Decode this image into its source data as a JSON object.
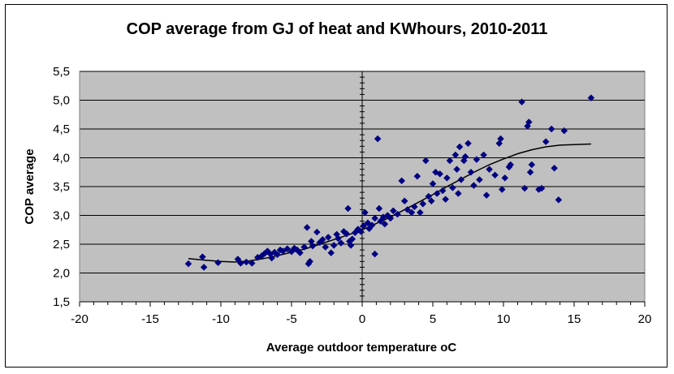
{
  "chart_data": {
    "type": "scatter",
    "title": "COP average from GJ of heat and KWhours, 2010-2011",
    "xlabel": "Average outdoor temperature oC",
    "ylabel": "COP average",
    "xlim": [
      -20,
      20
    ],
    "ylim": [
      1.5,
      5.5
    ],
    "xticks": [
      "-20",
      "-15",
      "-10",
      "-5",
      "0",
      "5",
      "10",
      "15",
      "20"
    ],
    "yticks": [
      "1,5",
      "2,0",
      "2,5",
      "3,0",
      "3,5",
      "4,0",
      "4,5",
      "5,0",
      "5,5"
    ],
    "xtick_values": [
      -20,
      -15,
      -10,
      -5,
      0,
      5,
      10,
      15,
      20
    ],
    "ytick_values": [
      1.5,
      2.0,
      2.5,
      3.0,
      3.5,
      4.0,
      4.5,
      5.0,
      5.5
    ],
    "plot_background": "#c0c0c0",
    "marker_color": "#000080",
    "trend_color": "#000000",
    "grid": "horizontal",
    "legend": "none",
    "series": [
      {
        "marker": "diamond",
        "points": [
          [
            -12.3,
            2.16
          ],
          [
            -11.3,
            2.28
          ],
          [
            -11.2,
            2.1
          ],
          [
            -10.2,
            2.18
          ],
          [
            -8.8,
            2.24
          ],
          [
            -8.6,
            2.17
          ],
          [
            -8.2,
            2.19
          ],
          [
            -7.8,
            2.17
          ],
          [
            -7.4,
            2.27
          ],
          [
            -7.1,
            2.3
          ],
          [
            -6.9,
            2.34
          ],
          [
            -6.7,
            2.38
          ],
          [
            -6.5,
            2.33
          ],
          [
            -6.4,
            2.26
          ],
          [
            -6.2,
            2.36
          ],
          [
            -6.0,
            2.32
          ],
          [
            -5.8,
            2.4
          ],
          [
            -5.6,
            2.38
          ],
          [
            -5.3,
            2.42
          ],
          [
            -5.0,
            2.37
          ],
          [
            -4.8,
            2.43
          ],
          [
            -4.6,
            2.4
          ],
          [
            -4.4,
            2.35
          ],
          [
            -4.1,
            2.45
          ],
          [
            -3.8,
            2.16
          ],
          [
            -3.7,
            2.2
          ],
          [
            -3.9,
            2.79
          ],
          [
            -3.6,
            2.55
          ],
          [
            -3.5,
            2.47
          ],
          [
            -3.2,
            2.71
          ],
          [
            -3.0,
            2.53
          ],
          [
            -2.8,
            2.58
          ],
          [
            -2.6,
            2.45
          ],
          [
            -2.4,
            2.62
          ],
          [
            -2.2,
            2.35
          ],
          [
            -2.0,
            2.48
          ],
          [
            -1.8,
            2.67
          ],
          [
            -1.7,
            2.6
          ],
          [
            -1.5,
            2.52
          ],
          [
            -1.3,
            2.72
          ],
          [
            -1.1,
            2.68
          ],
          [
            -0.9,
            2.55
          ],
          [
            -0.8,
            2.48
          ],
          [
            -0.7,
            2.59
          ],
          [
            -1.0,
            3.12
          ],
          [
            -0.5,
            2.7
          ],
          [
            -0.3,
            2.76
          ],
          [
            -0.1,
            2.72
          ],
          [
            0.1,
            2.82
          ],
          [
            0.2,
            3.05
          ],
          [
            0.4,
            2.87
          ],
          [
            0.5,
            2.77
          ],
          [
            0.7,
            2.83
          ],
          [
            0.9,
            2.95
          ],
          [
            0.9,
            2.33
          ],
          [
            1.1,
            4.33
          ],
          [
            1.2,
            3.12
          ],
          [
            1.3,
            2.9
          ],
          [
            1.5,
            2.97
          ],
          [
            1.6,
            2.85
          ],
          [
            1.8,
            3.0
          ],
          [
            2.0,
            2.95
          ],
          [
            2.2,
            3.08
          ],
          [
            2.5,
            3.02
          ],
          [
            2.8,
            3.6
          ],
          [
            3.0,
            3.25
          ],
          [
            3.2,
            3.1
          ],
          [
            3.5,
            3.05
          ],
          [
            3.7,
            3.15
          ],
          [
            3.9,
            3.68
          ],
          [
            4.1,
            3.05
          ],
          [
            4.3,
            3.2
          ],
          [
            4.5,
            3.95
          ],
          [
            4.7,
            3.33
          ],
          [
            4.9,
            3.25
          ],
          [
            5.0,
            3.55
          ],
          [
            5.2,
            3.75
          ],
          [
            5.3,
            3.38
          ],
          [
            5.5,
            3.72
          ],
          [
            5.7,
            3.43
          ],
          [
            5.9,
            3.28
          ],
          [
            6.0,
            3.65
          ],
          [
            6.2,
            3.95
          ],
          [
            6.4,
            3.48
          ],
          [
            6.6,
            4.05
          ],
          [
            6.7,
            3.8
          ],
          [
            6.8,
            3.38
          ],
          [
            6.9,
            4.19
          ],
          [
            7.0,
            3.62
          ],
          [
            7.2,
            3.95
          ],
          [
            7.3,
            4.02
          ],
          [
            7.5,
            4.25
          ],
          [
            7.7,
            3.75
          ],
          [
            7.9,
            3.52
          ],
          [
            8.1,
            3.97
          ],
          [
            8.3,
            3.62
          ],
          [
            8.6,
            4.05
          ],
          [
            8.8,
            3.35
          ],
          [
            9.0,
            3.8
          ],
          [
            9.4,
            3.7
          ],
          [
            9.7,
            4.25
          ],
          [
            9.8,
            4.33
          ],
          [
            9.9,
            3.45
          ],
          [
            10.1,
            3.65
          ],
          [
            10.4,
            3.84
          ],
          [
            10.5,
            3.88
          ],
          [
            11.3,
            4.97
          ],
          [
            11.5,
            3.47
          ],
          [
            11.7,
            4.55
          ],
          [
            11.8,
            4.62
          ],
          [
            11.9,
            3.75
          ],
          [
            12.0,
            3.88
          ],
          [
            12.5,
            3.45
          ],
          [
            12.7,
            3.47
          ],
          [
            13.0,
            4.28
          ],
          [
            13.4,
            4.5
          ],
          [
            13.6,
            3.82
          ],
          [
            13.9,
            3.27
          ],
          [
            14.3,
            4.47
          ],
          [
            16.2,
            5.04
          ]
        ]
      }
    ],
    "trendline": [
      [
        -12.3,
        2.25
      ],
      [
        -11,
        2.22
      ],
      [
        -10,
        2.2
      ],
      [
        -9,
        2.19
      ],
      [
        -8,
        2.21
      ],
      [
        -7,
        2.25
      ],
      [
        -6,
        2.3
      ],
      [
        -5,
        2.36
      ],
      [
        -4,
        2.42
      ],
      [
        -3,
        2.5
      ],
      [
        -2,
        2.58
      ],
      [
        -1,
        2.66
      ],
      [
        0,
        2.75
      ],
      [
        1,
        2.86
      ],
      [
        2,
        2.97
      ],
      [
        3,
        3.1
      ],
      [
        4,
        3.23
      ],
      [
        5,
        3.36
      ],
      [
        6,
        3.5
      ],
      [
        7,
        3.63
      ],
      [
        8,
        3.76
      ],
      [
        9,
        3.88
      ],
      [
        10,
        3.98
      ],
      [
        11,
        4.07
      ],
      [
        12,
        4.14
      ],
      [
        13,
        4.19
      ],
      [
        14,
        4.22
      ],
      [
        15,
        4.23
      ],
      [
        16.2,
        4.24
      ]
    ]
  }
}
